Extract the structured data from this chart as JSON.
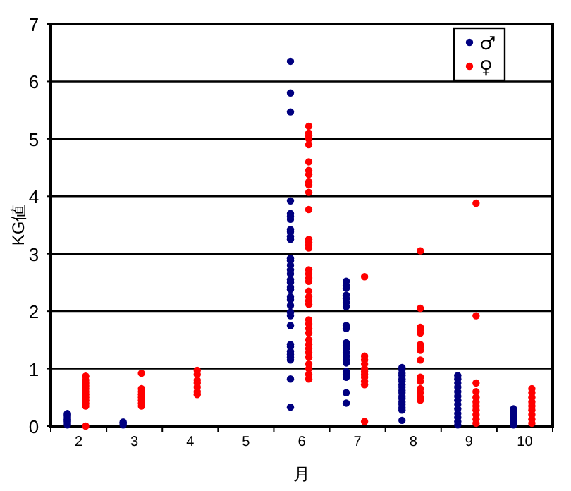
{
  "chart_data": {
    "type": "scatter",
    "xlabel": "月",
    "ylabel": "KG値",
    "categories": [
      "2",
      "3",
      "4",
      "5",
      "6",
      "7",
      "8",
      "9",
      "10"
    ],
    "ylim": [
      0,
      7
    ],
    "yticks": [
      0,
      1,
      2,
      3,
      4,
      5,
      6,
      7
    ],
    "grid": "y",
    "legend": "top right",
    "marker": "circle",
    "series": [
      {
        "name": "♂",
        "color": "#000080",
        "x": [
          "2",
          "2",
          "2",
          "2",
          "2",
          "2",
          "2",
          "2",
          "2",
          "3",
          "3",
          "3",
          "6",
          "6",
          "6",
          "6",
          "6",
          "6",
          "6",
          "6",
          "6",
          "6",
          "6",
          "6",
          "6",
          "6",
          "6",
          "6",
          "6",
          "6",
          "6",
          "6",
          "6",
          "6",
          "6",
          "6",
          "6",
          "6",
          "6",
          "6",
          "6",
          "6",
          "6",
          "6",
          "6",
          "6",
          "7",
          "7",
          "7",
          "7",
          "7",
          "7",
          "7",
          "7",
          "7",
          "7",
          "7",
          "7",
          "7",
          "7",
          "7",
          "7",
          "7",
          "7",
          "7",
          "7",
          "7",
          "8",
          "8",
          "8",
          "8",
          "8",
          "8",
          "8",
          "8",
          "8",
          "8",
          "8",
          "8",
          "8",
          "8",
          "8",
          "8",
          "8",
          "9",
          "9",
          "9",
          "9",
          "9",
          "9",
          "9",
          "9",
          "9",
          "9",
          "9",
          "9",
          "9",
          "10",
          "10",
          "10",
          "10",
          "10",
          "10",
          "10"
        ],
        "values": [
          0.02,
          0.05,
          0.08,
          0.1,
          0.12,
          0.15,
          0.18,
          0.2,
          0.22,
          0.02,
          0.05,
          0.07,
          6.35,
          5.8,
          5.47,
          3.92,
          3.7,
          3.65,
          3.6,
          3.42,
          3.38,
          3.3,
          3.25,
          2.92,
          2.88,
          2.8,
          2.72,
          2.65,
          2.55,
          2.5,
          2.42,
          2.38,
          2.25,
          2.2,
          2.1,
          1.98,
          1.92,
          1.75,
          1.42,
          1.38,
          1.3,
          1.25,
          1.2,
          1.15,
          0.82,
          0.33,
          2.52,
          2.45,
          2.4,
          2.28,
          2.22,
          2.15,
          2.08,
          1.75,
          1.7,
          1.45,
          1.4,
          1.35,
          1.28,
          1.22,
          1.15,
          1.1,
          0.95,
          0.9,
          0.85,
          0.58,
          0.4,
          1.02,
          0.98,
          0.92,
          0.88,
          0.82,
          0.78,
          0.72,
          0.68,
          0.62,
          0.58,
          0.52,
          0.48,
          0.42,
          0.38,
          0.32,
          0.28,
          0.1,
          0.88,
          0.82,
          0.75,
          0.68,
          0.6,
          0.52,
          0.45,
          0.38,
          0.3,
          0.22,
          0.15,
          0.08,
          0.02,
          0.3,
          0.25,
          0.2,
          0.15,
          0.1,
          0.05,
          0.02
        ]
      },
      {
        "name": "♀",
        "color": "#ff0000",
        "x": [
          "2",
          "2",
          "2",
          "2",
          "2",
          "2",
          "2",
          "2",
          "2",
          "2",
          "2",
          "2",
          "3",
          "3",
          "3",
          "3",
          "3",
          "3",
          "3",
          "3",
          "4",
          "4",
          "4",
          "4",
          "4",
          "4",
          "4",
          "6",
          "6",
          "6",
          "6",
          "6",
          "6",
          "6",
          "6",
          "6",
          "6",
          "6",
          "6",
          "6",
          "6",
          "6",
          "6",
          "6",
          "6",
          "6",
          "6",
          "6",
          "6",
          "6",
          "6",
          "6",
          "6",
          "6",
          "6",
          "6",
          "6",
          "6",
          "6",
          "6",
          "6",
          "6",
          "6",
          "6",
          "7",
          "7",
          "7",
          "7",
          "7",
          "7",
          "7",
          "7",
          "7",
          "7",
          "7",
          "8",
          "8",
          "8",
          "8",
          "8",
          "8",
          "8",
          "8",
          "8",
          "8",
          "8",
          "8",
          "8",
          "8",
          "8",
          "9",
          "9",
          "9",
          "9",
          "9",
          "9",
          "9",
          "9",
          "9",
          "9",
          "9",
          "10",
          "10",
          "10",
          "10",
          "10",
          "10",
          "10",
          "10",
          "10"
        ],
        "values": [
          0.87,
          0.8,
          0.75,
          0.7,
          0.65,
          0.6,
          0.55,
          0.5,
          0.45,
          0.4,
          0.35,
          0,
          0.92,
          0.65,
          0.6,
          0.55,
          0.5,
          0.45,
          0.4,
          0.35,
          0.97,
          0.9,
          0.8,
          0.75,
          0.68,
          0.6,
          0.55,
          5.22,
          5.1,
          5.05,
          5.0,
          4.9,
          4.6,
          4.45,
          4.38,
          4.25,
          4.2,
          4.07,
          3.77,
          3.25,
          3.2,
          3.15,
          3.1,
          2.72,
          2.65,
          2.58,
          2.52,
          2.35,
          2.25,
          2.18,
          2.12,
          1.85,
          1.78,
          1.7,
          1.62,
          1.5,
          1.42,
          1.35,
          1.28,
          1.2,
          1.08,
          1.0,
          0.9,
          0.82,
          2.6,
          1.22,
          1.15,
          1.08,
          1.0,
          0.95,
          0.9,
          0.85,
          0.78,
          0.72,
          0.08,
          3.05,
          2.05,
          1.72,
          1.68,
          1.62,
          1.42,
          1.38,
          1.32,
          1.15,
          0.85,
          0.78,
          0.65,
          0.58,
          0.5,
          0.45,
          3.88,
          1.92,
          0.75,
          0.6,
          0.5,
          0.42,
          0.35,
          0.28,
          0.2,
          0.12,
          0.05,
          0.65,
          0.58,
          0.5,
          0.42,
          0.35,
          0.28,
          0.2,
          0.12,
          0.05
        ]
      }
    ]
  }
}
